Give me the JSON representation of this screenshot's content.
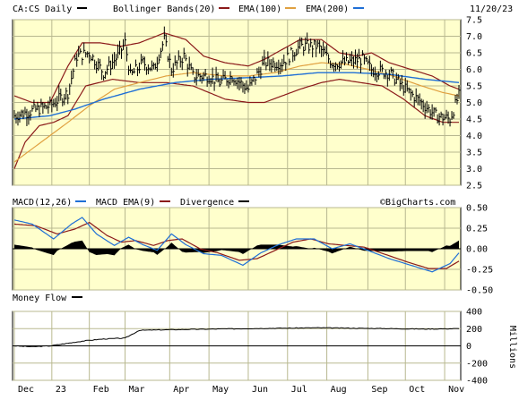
{
  "chart_data": [
    {
      "type": "line",
      "header": {
        "symbol_label": "CA:CS Daily",
        "legend": [
          {
            "name": "Bollinger Bands(20)",
            "color": "#8b1a1a"
          },
          {
            "name": "EMA(100)",
            "color": "#e0a040"
          },
          {
            "name": "EMA(200)",
            "color": "#1f6fd6"
          }
        ],
        "date": "11/20/23"
      },
      "symbol_color": "#000000",
      "ylim": [
        2.5,
        7.5
      ],
      "yticks": [
        "7.5",
        "7.0",
        "6.5",
        "6.0",
        "5.5",
        "5.0",
        "4.5",
        "4.0",
        "3.5",
        "3.0",
        "2.5"
      ],
      "x_labels": [
        "Dec",
        "23",
        "Feb",
        "Mar",
        "Apr",
        "May",
        "Jun",
        "Jul",
        "Aug",
        "Sep",
        "Oct",
        "Nov"
      ],
      "x_label_index": [
        0,
        21,
        42,
        62,
        87,
        109,
        131,
        153,
        175,
        198,
        219,
        241
      ],
      "n_points": 250,
      "price_keyframes": [
        [
          0,
          4.6
        ],
        [
          10,
          4.75
        ],
        [
          20,
          4.9
        ],
        [
          30,
          5.3
        ],
        [
          35,
          6.4
        ],
        [
          42,
          6.5
        ],
        [
          50,
          5.9
        ],
        [
          58,
          6.4
        ],
        [
          62,
          6.8
        ],
        [
          65,
          5.8
        ],
        [
          72,
          6.2
        ],
        [
          78,
          6.0
        ],
        [
          84,
          6.9
        ],
        [
          88,
          6.0
        ],
        [
          95,
          6.4
        ],
        [
          100,
          5.8
        ],
        [
          109,
          5.8
        ],
        [
          115,
          5.6
        ],
        [
          122,
          5.8
        ],
        [
          131,
          5.4
        ],
        [
          140,
          6.2
        ],
        [
          150,
          6.2
        ],
        [
          160,
          6.7
        ],
        [
          170,
          6.7
        ],
        [
          178,
          6.2
        ],
        [
          185,
          6.2
        ],
        [
          195,
          6.3
        ],
        [
          200,
          6.0
        ],
        [
          210,
          5.9
        ],
        [
          219,
          5.4
        ],
        [
          228,
          5.0
        ],
        [
          236,
          4.6
        ],
        [
          244,
          4.5
        ],
        [
          249,
          5.2
        ]
      ],
      "bb_upper_keyframes": [
        [
          0,
          5.2
        ],
        [
          10,
          5.0
        ],
        [
          20,
          5.0
        ],
        [
          30,
          6.1
        ],
        [
          38,
          6.8
        ],
        [
          48,
          6.8
        ],
        [
          60,
          6.7
        ],
        [
          70,
          6.8
        ],
        [
          84,
          7.1
        ],
        [
          96,
          6.9
        ],
        [
          106,
          6.4
        ],
        [
          118,
          6.2
        ],
        [
          131,
          6.1
        ],
        [
          140,
          6.3
        ],
        [
          150,
          6.6
        ],
        [
          160,
          6.9
        ],
        [
          172,
          6.9
        ],
        [
          182,
          6.5
        ],
        [
          192,
          6.4
        ],
        [
          200,
          6.5
        ],
        [
          210,
          6.2
        ],
        [
          222,
          6.0
        ],
        [
          234,
          5.8
        ],
        [
          244,
          5.5
        ],
        [
          249,
          5.4
        ]
      ],
      "bb_lower_keyframes": [
        [
          0,
          3.0
        ],
        [
          6,
          3.8
        ],
        [
          14,
          4.3
        ],
        [
          22,
          4.4
        ],
        [
          30,
          4.6
        ],
        [
          40,
          5.5
        ],
        [
          55,
          5.7
        ],
        [
          70,
          5.6
        ],
        [
          85,
          5.6
        ],
        [
          100,
          5.5
        ],
        [
          118,
          5.1
        ],
        [
          131,
          5.0
        ],
        [
          140,
          5.0
        ],
        [
          150,
          5.2
        ],
        [
          160,
          5.4
        ],
        [
          172,
          5.6
        ],
        [
          182,
          5.7
        ],
        [
          194,
          5.6
        ],
        [
          206,
          5.5
        ],
        [
          218,
          5.1
        ],
        [
          230,
          4.6
        ],
        [
          240,
          4.4
        ],
        [
          249,
          4.4
        ]
      ],
      "ema100_keyframes": [
        [
          0,
          3.2
        ],
        [
          10,
          3.6
        ],
        [
          20,
          4.0
        ],
        [
          30,
          4.4
        ],
        [
          42,
          4.9
        ],
        [
          56,
          5.4
        ],
        [
          70,
          5.6
        ],
        [
          85,
          5.8
        ],
        [
          100,
          5.9
        ],
        [
          118,
          5.8
        ],
        [
          131,
          5.8
        ],
        [
          146,
          5.9
        ],
        [
          160,
          6.1
        ],
        [
          172,
          6.2
        ],
        [
          186,
          6.15
        ],
        [
          198,
          6.0
        ],
        [
          212,
          5.8
        ],
        [
          228,
          5.5
        ],
        [
          240,
          5.3
        ],
        [
          249,
          5.2
        ]
      ],
      "ema200_keyframes": [
        [
          0,
          4.5
        ],
        [
          10,
          4.55
        ],
        [
          20,
          4.6
        ],
        [
          34,
          4.8
        ],
        [
          50,
          5.1
        ],
        [
          70,
          5.4
        ],
        [
          90,
          5.6
        ],
        [
          110,
          5.7
        ],
        [
          131,
          5.75
        ],
        [
          150,
          5.8
        ],
        [
          170,
          5.9
        ],
        [
          190,
          5.9
        ],
        [
          210,
          5.85
        ],
        [
          230,
          5.7
        ],
        [
          249,
          5.6
        ]
      ]
    },
    {
      "type": "line",
      "header": {
        "legend": [
          {
            "name": "MACD(12,26)",
            "color": "#1f6fd6"
          },
          {
            "name": "MACD EMA(9)",
            "color": "#8b1a1a"
          },
          {
            "name": "Divergence",
            "color": "#000000"
          }
        ],
        "watermark": "©BigCharts.com"
      },
      "ylim": [
        -0.5,
        0.5
      ],
      "yticks": [
        "0.50",
        "0.25",
        "0.00",
        "-0.25",
        "-0.50"
      ],
      "macd_keyframes": [
        [
          0,
          0.35
        ],
        [
          10,
          0.3
        ],
        [
          22,
          0.12
        ],
        [
          32,
          0.3
        ],
        [
          38,
          0.38
        ],
        [
          46,
          0.18
        ],
        [
          56,
          0.04
        ],
        [
          64,
          0.14
        ],
        [
          72,
          0.05
        ],
        [
          80,
          -0.02
        ],
        [
          88,
          0.18
        ],
        [
          96,
          0.05
        ],
        [
          106,
          -0.06
        ],
        [
          116,
          -0.08
        ],
        [
          128,
          -0.2
        ],
        [
          138,
          -0.05
        ],
        [
          148,
          0.05
        ],
        [
          158,
          0.12
        ],
        [
          168,
          0.12
        ],
        [
          178,
          0.0
        ],
        [
          188,
          0.06
        ],
        [
          198,
          -0.02
        ],
        [
          210,
          -0.12
        ],
        [
          222,
          -0.2
        ],
        [
          234,
          -0.28
        ],
        [
          244,
          -0.18
        ],
        [
          249,
          -0.05
        ]
      ],
      "signal_keyframes": [
        [
          0,
          0.3
        ],
        [
          12,
          0.28
        ],
        [
          24,
          0.18
        ],
        [
          34,
          0.24
        ],
        [
          42,
          0.32
        ],
        [
          52,
          0.16
        ],
        [
          60,
          0.08
        ],
        [
          68,
          0.1
        ],
        [
          78,
          0.04
        ],
        [
          86,
          0.1
        ],
        [
          94,
          0.12
        ],
        [
          104,
          0.0
        ],
        [
          114,
          -0.05
        ],
        [
          126,
          -0.14
        ],
        [
          136,
          -0.12
        ],
        [
          146,
          -0.02
        ],
        [
          156,
          0.08
        ],
        [
          166,
          0.12
        ],
        [
          176,
          0.06
        ],
        [
          186,
          0.04
        ],
        [
          196,
          0.02
        ],
        [
          208,
          -0.07
        ],
        [
          220,
          -0.16
        ],
        [
          232,
          -0.24
        ],
        [
          242,
          -0.24
        ],
        [
          249,
          -0.15
        ]
      ]
    },
    {
      "type": "line",
      "header": {
        "legend": [
          {
            "name": "Money Flow",
            "color": "#000000"
          }
        ]
      },
      "ylim": [
        -400,
        400
      ],
      "yticks": [
        "400",
        "200",
        "0",
        "-200",
        "-400"
      ],
      "ylabel": "Millions",
      "flow_keyframes": [
        [
          0,
          0
        ],
        [
          10,
          -10
        ],
        [
          20,
          0
        ],
        [
          30,
          30
        ],
        [
          40,
          60
        ],
        [
          50,
          80
        ],
        [
          62,
          90
        ],
        [
          70,
          180
        ],
        [
          80,
          185
        ],
        [
          95,
          190
        ],
        [
          110,
          195
        ],
        [
          130,
          200
        ],
        [
          150,
          205
        ],
        [
          170,
          210
        ],
        [
          190,
          205
        ],
        [
          210,
          200
        ],
        [
          230,
          195
        ],
        [
          249,
          200
        ]
      ]
    }
  ]
}
